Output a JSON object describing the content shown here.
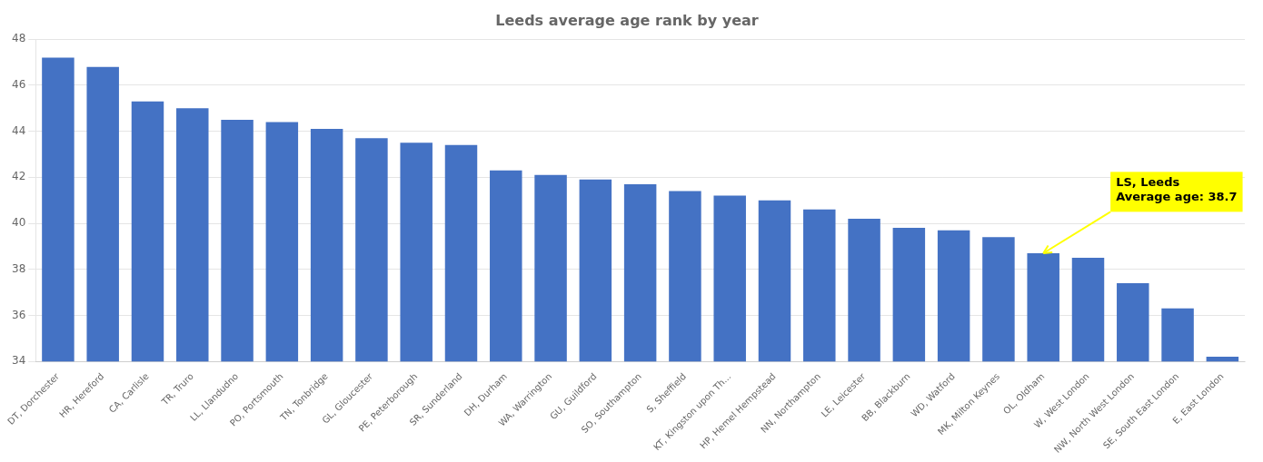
{
  "chart_data": {
    "type": "bar",
    "title": "Leeds average age rank by year",
    "categories": [
      "DT, Dorchester",
      "HR, Hereford",
      "CA, Carlisle",
      "TR, Truro",
      "LL, Llandudno",
      "PO, Portsmouth",
      "TN, Tonbridge",
      "GL, Gloucester",
      "PE, Peterborough",
      "SR, Sunderland",
      "DH, Durham",
      "WA, Warrington",
      "GU, Guildford",
      "SO, Southampton",
      "S, Sheffield",
      "KT, Kingston upon Th...",
      "HP, Hemel Hempstead",
      "NN, Northampton",
      "LE, Leicester",
      "BB, Blackburn",
      "WD, Watford",
      "MK, Milton Keynes",
      "OL, Oldham",
      "W, West London",
      "NW, North West London",
      "SE, South East London",
      "E, East London"
    ],
    "values": [
      47.2,
      46.8,
      45.3,
      45.0,
      44.5,
      44.4,
      44.1,
      43.7,
      43.5,
      43.4,
      42.3,
      42.1,
      41.9,
      41.7,
      41.4,
      41.2,
      41.0,
      40.6,
      40.2,
      39.8,
      39.7,
      39.4,
      38.7,
      38.5,
      37.4,
      36.3,
      34.2
    ],
    "color": "#4472c4",
    "ylim": [
      34,
      48
    ],
    "yticks": [
      34,
      36,
      38,
      40,
      42,
      44,
      46,
      48
    ],
    "grid": true,
    "annotations": [
      {
        "text": "LS, Leeds\nAverage age: 38.7",
        "category": "OL, Oldham",
        "value": 38.7,
        "color": "#ffff00"
      }
    ]
  }
}
